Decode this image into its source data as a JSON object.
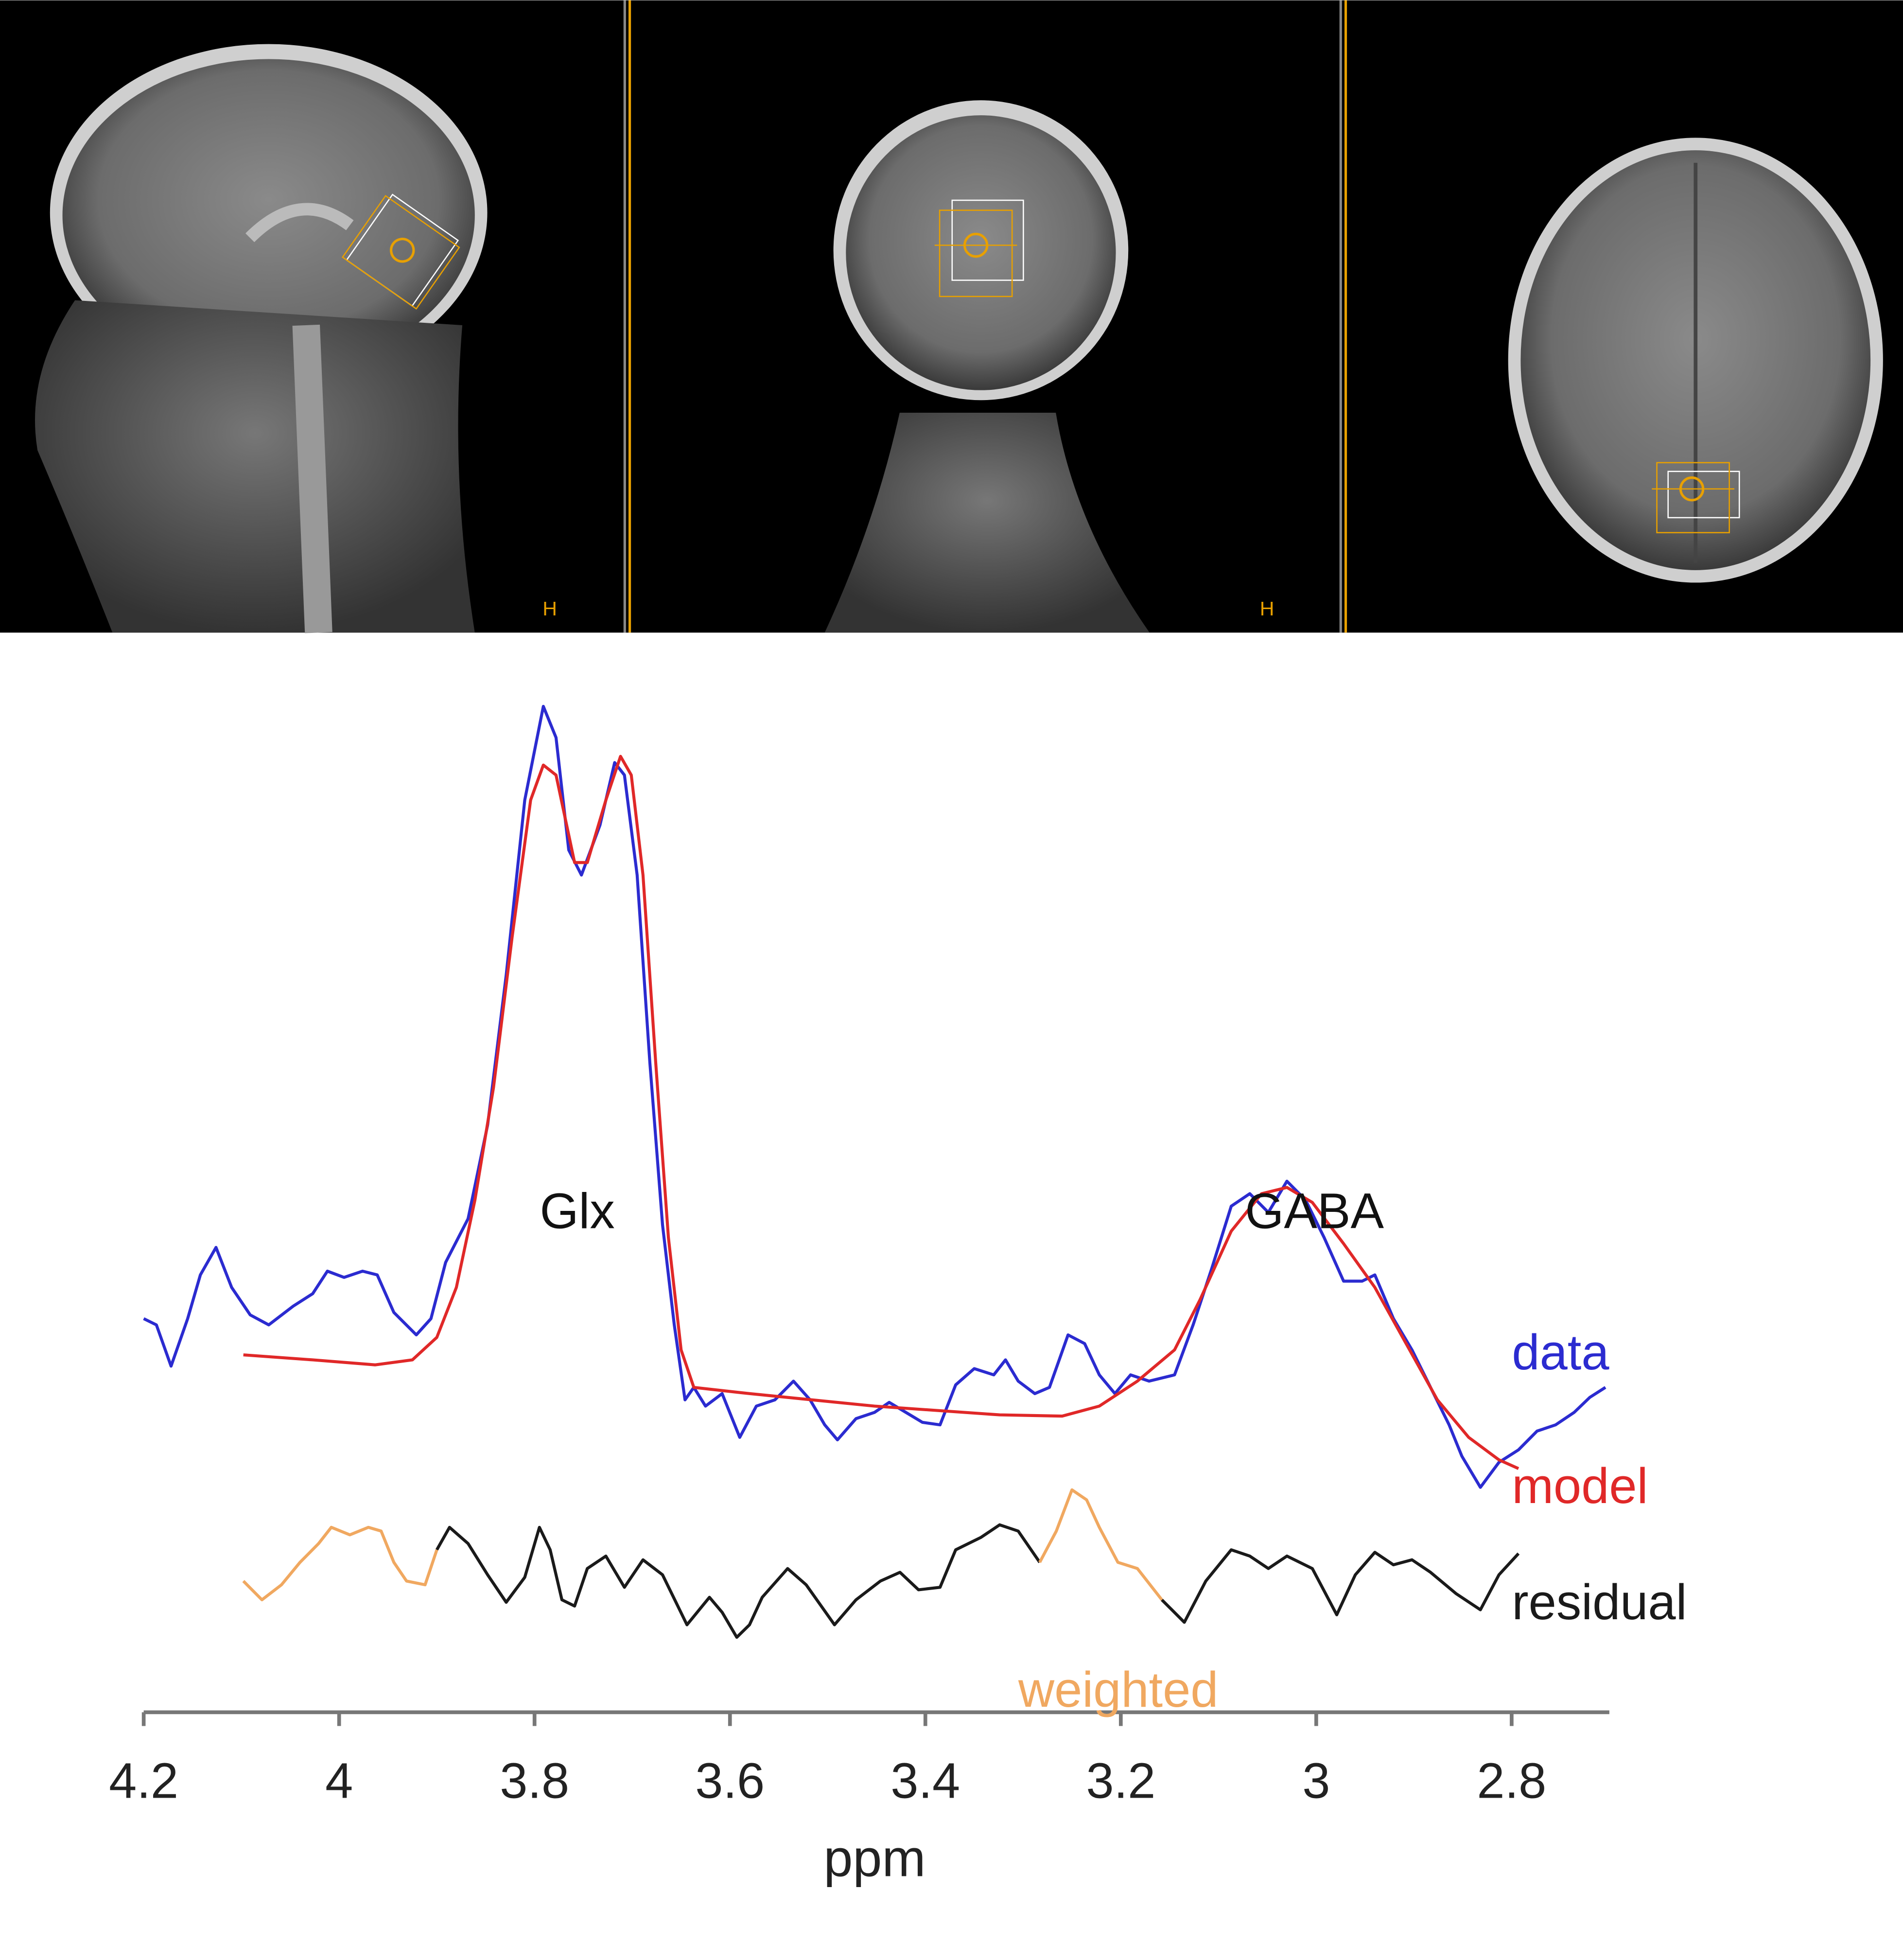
{
  "images": {
    "labels": [
      "H",
      "H"
    ]
  },
  "chart_data": {
    "type": "line",
    "xlabel": "ppm",
    "xlim": [
      4.2,
      2.7
    ],
    "xticks": [
      4.2,
      4,
      3.8,
      3.6,
      3.4,
      3.2,
      3,
      2.8
    ],
    "ylim": [
      0,
      80
    ],
    "annotations": [
      "Glx",
      "GABA",
      "weighted"
    ],
    "series": [
      {
        "name": "data",
        "color": "#2b2bd0",
        "x": [
          4.2,
          4.187,
          4.172,
          4.155,
          4.142,
          4.126,
          4.11,
          4.091,
          4.072,
          4.047,
          4.027,
          4.012,
          3.995,
          3.976,
          3.961,
          3.944,
          3.921,
          3.906,
          3.891,
          3.868,
          3.848,
          3.829,
          3.81,
          3.791,
          3.778,
          3.765,
          3.752,
          3.733,
          3.718,
          3.708,
          3.695,
          3.682,
          3.669,
          3.657,
          3.646,
          3.637,
          3.625,
          3.608,
          3.59,
          3.573,
          3.554,
          3.535,
          3.518,
          3.503,
          3.49,
          3.471,
          3.452,
          3.437,
          3.42,
          3.403,
          3.385,
          3.369,
          3.35,
          3.33,
          3.318,
          3.305,
          3.288,
          3.273,
          3.254,
          3.237,
          3.222,
          3.206,
          3.19,
          3.171,
          3.145,
          3.126,
          3.107,
          3.087,
          3.068,
          3.049,
          3.03,
          3.011,
          2.992,
          2.972,
          2.953,
          2.94,
          2.921,
          2.902,
          2.883,
          2.864,
          2.851,
          2.832,
          2.813,
          2.793,
          2.774,
          2.755,
          2.736,
          2.72,
          2.704
        ],
        "values": [
          27.5,
          27.0,
          23.7,
          27.5,
          31.0,
          33.2,
          30.0,
          27.8,
          27.0,
          28.5,
          29.5,
          31.3,
          30.8,
          31.3,
          31.0,
          28.0,
          26.2,
          27.5,
          32.0,
          35.5,
          43.0,
          55.0,
          69.0,
          76.5,
          74.0,
          65.0,
          63.0,
          67.0,
          72.0,
          71.0,
          63.0,
          48.0,
          35.0,
          27.0,
          21.0,
          22.0,
          20.5,
          21.5,
          18.0,
          20.5,
          21.0,
          22.5,
          21.0,
          19.0,
          17.8,
          19.5,
          20.0,
          20.8,
          20.0,
          19.2,
          19.0,
          22.2,
          23.5,
          23.0,
          24.2,
          22.5,
          21.5,
          22.0,
          26.2,
          25.5,
          23.0,
          21.5,
          23.0,
          22.5,
          23.0,
          27.0,
          31.5,
          36.5,
          37.5,
          36.0,
          38.5,
          37.0,
          34.0,
          30.5,
          30.5,
          31.0,
          27.5,
          25.0,
          22.0,
          19.0,
          16.5,
          14.0,
          16.0,
          17.0,
          18.5,
          19.0,
          20.0,
          21.2,
          22.0
        ]
      },
      {
        "name": "model",
        "color": "#e02828",
        "x": [
          4.098,
          4.027,
          3.963,
          3.925,
          3.9,
          3.88,
          3.861,
          3.842,
          3.823,
          3.804,
          3.791,
          3.778,
          3.759,
          3.746,
          3.727,
          3.712,
          3.701,
          3.689,
          3.676,
          3.663,
          3.65,
          3.637,
          3.58,
          3.452,
          3.324,
          3.26,
          3.222,
          3.183,
          3.145,
          3.119,
          3.087,
          3.056,
          3.03,
          3.004,
          2.972,
          2.94,
          2.908,
          2.876,
          2.844,
          2.813,
          2.793
        ],
        "values": [
          24.6,
          24.2,
          23.8,
          24.2,
          26.0,
          30.0,
          37.0,
          46.0,
          58.0,
          69.0,
          71.8,
          71.0,
          64.0,
          64.0,
          69.0,
          72.5,
          71.0,
          63.0,
          48.0,
          34.0,
          25.0,
          22.0,
          21.5,
          20.5,
          19.8,
          19.7,
          20.5,
          22.5,
          25.0,
          29.0,
          34.5,
          37.5,
          38.0,
          36.8,
          33.5,
          30.0,
          25.5,
          21.0,
          18.0,
          16.2,
          15.5
        ]
      },
      {
        "name": "residual",
        "color": "#1a1a1a",
        "x": [
          4.098,
          4.079,
          4.059,
          4.04,
          4.021,
          4.008,
          3.989,
          3.97,
          3.957,
          3.944,
          3.931,
          3.912,
          3.9,
          3.887,
          3.868,
          3.848,
          3.829,
          3.81,
          3.795,
          3.784,
          3.772,
          3.759,
          3.746,
          3.727,
          3.708,
          3.689,
          3.669,
          3.644,
          3.621,
          3.608,
          3.593,
          3.58,
          3.567,
          3.541,
          3.522,
          3.493,
          3.471,
          3.446,
          3.426,
          3.407,
          3.385,
          3.369,
          3.343,
          3.324,
          3.305,
          3.283,
          3.266,
          3.25,
          3.235,
          3.222,
          3.203,
          3.183,
          3.158,
          3.135,
          3.113,
          3.087,
          3.068,
          3.049,
          3.03,
          3.004,
          2.979,
          2.96,
          2.94,
          2.921,
          2.902,
          2.883,
          2.857,
          2.832,
          2.813,
          2.793
        ],
        "values": [
          null,
          null,
          null,
          null,
          null,
          null,
          null,
          null,
          null,
          null,
          null,
          null,
          9.0,
          10.8,
          9.5,
          7.0,
          4.8,
          6.8,
          10.8,
          9.0,
          5.0,
          4.5,
          7.5,
          8.5,
          6.0,
          8.2,
          7.0,
          3.0,
          5.2,
          4.0,
          2.0,
          3.0,
          5.2,
          7.5,
          6.2,
          3.0,
          5.0,
          6.5,
          7.2,
          5.8,
          6.0,
          9.0,
          10.0,
          11.0,
          10.5,
          8.0,
          null,
          null,
          null,
          null,
          null,
          null,
          5.0,
          3.2,
          6.5,
          9.0,
          8.5,
          7.5,
          8.5,
          7.5,
          3.8,
          7.0,
          8.8,
          7.8,
          8.2,
          7.2,
          5.5,
          4.2,
          7.0,
          8.7
        ]
      },
      {
        "name": "weighted",
        "color": "#f0a860",
        "x": [
          4.098,
          4.079,
          4.059,
          4.04,
          4.021,
          4.008,
          3.989,
          3.97,
          3.957,
          3.944,
          3.931,
          3.912,
          3.9,
          3.887,
          3.868,
          3.848,
          3.829,
          3.81,
          3.795,
          3.784,
          3.772,
          3.759,
          3.746,
          3.727,
          3.708,
          3.689,
          3.669,
          3.644,
          3.621,
          3.608,
          3.593,
          3.58,
          3.567,
          3.541,
          3.522,
          3.493,
          3.471,
          3.446,
          3.426,
          3.407,
          3.385,
          3.369,
          3.343,
          3.324,
          3.305,
          3.283,
          3.266,
          3.25,
          3.235,
          3.222,
          3.203,
          3.183,
          3.158,
          3.135,
          3.113,
          3.087,
          3.068,
          3.049,
          3.03,
          3.004,
          2.979,
          2.96,
          2.94,
          2.921,
          2.902,
          2.883,
          2.857,
          2.832,
          2.813,
          2.793
        ],
        "values": [
          6.5,
          5.0,
          6.2,
          8.0,
          9.5,
          10.8,
          10.2,
          10.8,
          10.5,
          8.0,
          6.5,
          6.2,
          9.0,
          null,
          null,
          null,
          null,
          null,
          null,
          null,
          null,
          null,
          null,
          null,
          null,
          null,
          null,
          null,
          null,
          null,
          null,
          null,
          null,
          null,
          null,
          null,
          null,
          null,
          null,
          null,
          null,
          null,
          null,
          null,
          null,
          8.0,
          10.5,
          13.8,
          13.0,
          10.8,
          8.0,
          7.5,
          5.0,
          null,
          null,
          null,
          null,
          null,
          null,
          null,
          null,
          null,
          null,
          null,
          null,
          null,
          null,
          null,
          null,
          null
        ]
      }
    ]
  }
}
